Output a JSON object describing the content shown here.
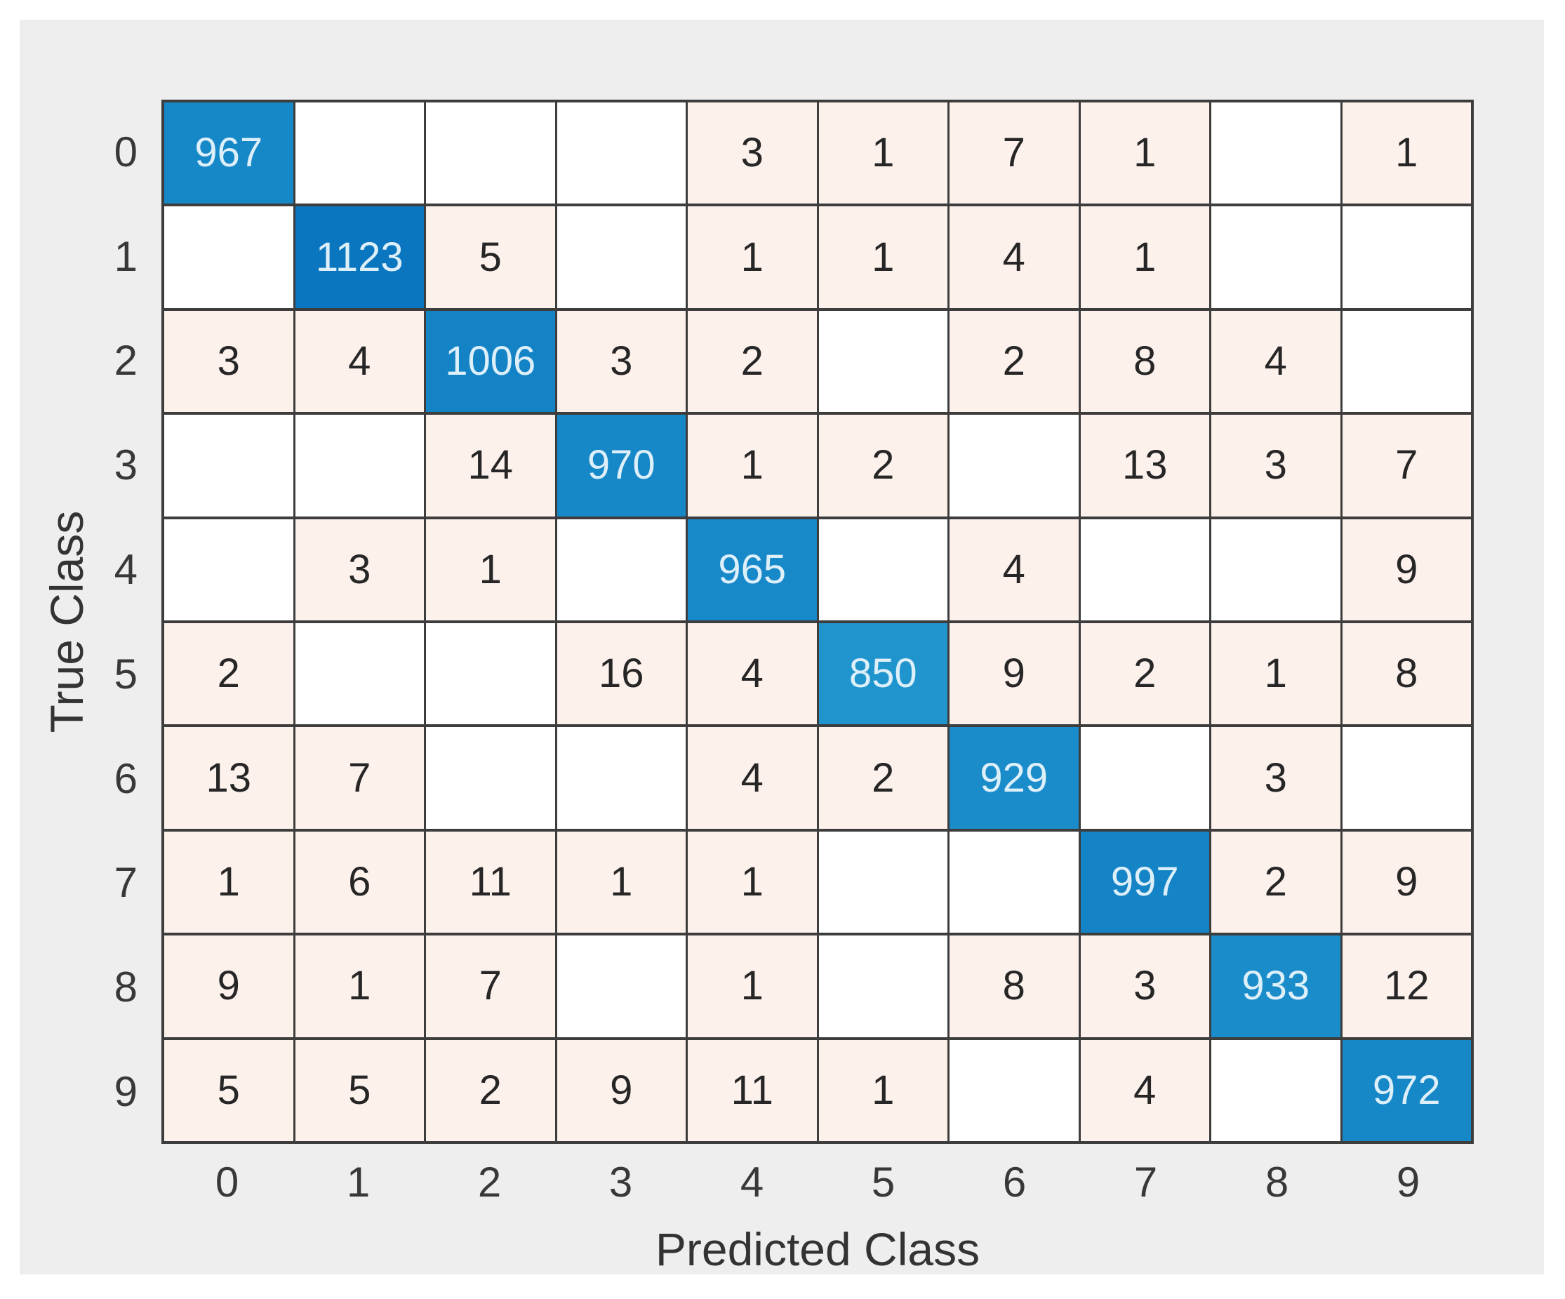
{
  "chart_data": {
    "type": "heatmap",
    "title": "",
    "xlabel": "Predicted Class",
    "ylabel": "True Class",
    "x_tick_labels": [
      "0",
      "1",
      "2",
      "3",
      "4",
      "5",
      "6",
      "7",
      "8",
      "9"
    ],
    "y_tick_labels": [
      "0",
      "1",
      "2",
      "3",
      "4",
      "5",
      "6",
      "7",
      "8",
      "9"
    ],
    "matrix": [
      [
        967,
        0,
        0,
        0,
        3,
        1,
        7,
        1,
        0,
        1
      ],
      [
        0,
        1123,
        5,
        0,
        1,
        1,
        4,
        1,
        0,
        0
      ],
      [
        3,
        4,
        1006,
        3,
        2,
        0,
        2,
        8,
        4,
        0
      ],
      [
        0,
        0,
        14,
        970,
        1,
        2,
        0,
        13,
        3,
        7
      ],
      [
        0,
        3,
        1,
        0,
        965,
        0,
        4,
        0,
        0,
        9
      ],
      [
        2,
        0,
        0,
        16,
        4,
        850,
        9,
        2,
        1,
        8
      ],
      [
        13,
        7,
        0,
        0,
        4,
        2,
        929,
        0,
        3,
        0
      ],
      [
        1,
        6,
        11,
        1,
        1,
        0,
        0,
        997,
        2,
        9
      ],
      [
        9,
        1,
        7,
        0,
        1,
        0,
        8,
        3,
        933,
        12
      ],
      [
        5,
        5,
        2,
        9,
        11,
        1,
        0,
        4,
        0,
        972
      ]
    ],
    "legend_position": "none",
    "grid": true,
    "colors": {
      "diagonal_dark": "#0a76c0",
      "diagonal_light": "#2095cd",
      "diagonal_dark_value": 1123,
      "diagonal_light_value": 850,
      "offdiagonal_fill": "#fdf1ec",
      "zero_fill": "#ffffff",
      "grid_line": "#3d3d3d",
      "diagonal_text": "#ddeff9",
      "offdiagonal_text": "#262626",
      "tick_text": "#383838",
      "panel_background": "#eeeeee"
    }
  }
}
